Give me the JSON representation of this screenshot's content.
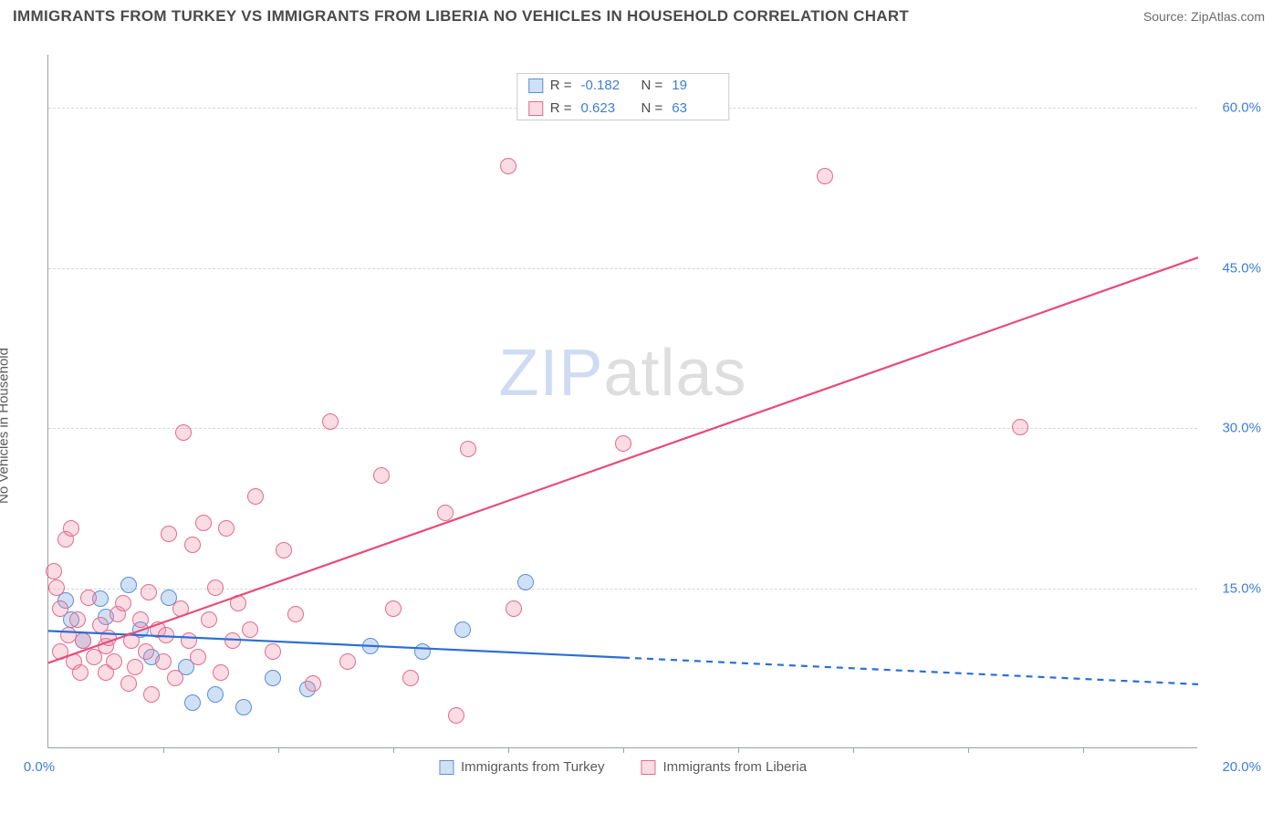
{
  "title": "IMMIGRANTS FROM TURKEY VS IMMIGRANTS FROM LIBERIA NO VEHICLES IN HOUSEHOLD CORRELATION CHART",
  "source": "Source: ZipAtlas.com",
  "ylabel": "No Vehicles in Household",
  "watermark_zip": "ZIP",
  "watermark_atlas": "atlas",
  "chart": {
    "type": "scatter",
    "xlim": [
      0,
      20
    ],
    "ylim": [
      0,
      65
    ],
    "xtick_labels": [
      "0.0%",
      "20.0%"
    ],
    "xtick_positions": [
      0,
      20
    ],
    "xtick_minor": [
      2,
      4,
      6,
      8,
      10,
      12,
      14,
      16,
      18
    ],
    "ytick_labels": [
      "15.0%",
      "30.0%",
      "45.0%",
      "60.0%"
    ],
    "ytick_positions": [
      15,
      30,
      45,
      60
    ],
    "background_color": "#ffffff",
    "grid_color": "#d5d7da",
    "axis_color": "#9aa0a6",
    "label_color": "#3d7fd9",
    "point_radius": 9,
    "point_border": 1.5,
    "series": [
      {
        "name": "Immigrants from Turkey",
        "fill": "rgba(120,170,230,0.35)",
        "stroke": "#5b8fd6",
        "line_color": "#2a6fd6",
        "line_width": 2.2,
        "R": "-0.182",
        "N": "19",
        "trend": {
          "x1": 0,
          "y1": 11.0,
          "x2_solid": 10,
          "y2_solid": 8.5,
          "x2": 20,
          "y2": 6.0
        },
        "points": [
          [
            0.3,
            13.8
          ],
          [
            0.4,
            12.0
          ],
          [
            0.6,
            10.0
          ],
          [
            0.9,
            13.9
          ],
          [
            1.0,
            12.2
          ],
          [
            1.4,
            15.2
          ],
          [
            1.6,
            11.0
          ],
          [
            1.8,
            8.5
          ],
          [
            2.1,
            14.0
          ],
          [
            2.4,
            7.5
          ],
          [
            2.5,
            4.2
          ],
          [
            2.9,
            5.0
          ],
          [
            3.4,
            3.8
          ],
          [
            3.9,
            6.5
          ],
          [
            4.5,
            5.5
          ],
          [
            5.6,
            9.5
          ],
          [
            6.5,
            9.0
          ],
          [
            7.2,
            11.0
          ],
          [
            8.3,
            15.5
          ]
        ]
      },
      {
        "name": "Immigrants from Liberia",
        "fill": "rgba(240,140,165,0.30)",
        "stroke": "#e26c8e",
        "line_color": "#e84b7b",
        "line_width": 2.2,
        "R": "0.623",
        "N": "63",
        "trend": {
          "x1": 0,
          "y1": 8.0,
          "x2_solid": 20,
          "y2_solid": 46.0,
          "x2": 20,
          "y2": 46.0
        },
        "points": [
          [
            0.1,
            16.5
          ],
          [
            0.15,
            15.0
          ],
          [
            0.2,
            13.0
          ],
          [
            0.2,
            9.0
          ],
          [
            0.3,
            19.5
          ],
          [
            0.35,
            10.5
          ],
          [
            0.4,
            20.5
          ],
          [
            0.45,
            8.0
          ],
          [
            0.5,
            12.0
          ],
          [
            0.55,
            7.0
          ],
          [
            0.6,
            10.0
          ],
          [
            0.7,
            14.0
          ],
          [
            0.8,
            8.5
          ],
          [
            0.9,
            11.5
          ],
          [
            1.0,
            9.5
          ],
          [
            1.0,
            7.0
          ],
          [
            1.05,
            10.3
          ],
          [
            1.15,
            8.0
          ],
          [
            1.2,
            12.5
          ],
          [
            1.3,
            13.5
          ],
          [
            1.4,
            6.0
          ],
          [
            1.45,
            10.0
          ],
          [
            1.5,
            7.5
          ],
          [
            1.6,
            12.0
          ],
          [
            1.7,
            9.0
          ],
          [
            1.75,
            14.5
          ],
          [
            1.8,
            5.0
          ],
          [
            1.9,
            11.0
          ],
          [
            2.0,
            8.0
          ],
          [
            2.05,
            10.5
          ],
          [
            2.1,
            20.0
          ],
          [
            2.2,
            6.5
          ],
          [
            2.3,
            13.0
          ],
          [
            2.35,
            29.5
          ],
          [
            2.45,
            10.0
          ],
          [
            2.5,
            19.0
          ],
          [
            2.6,
            8.5
          ],
          [
            2.7,
            21.0
          ],
          [
            2.8,
            12.0
          ],
          [
            2.9,
            15.0
          ],
          [
            3.0,
            7.0
          ],
          [
            3.1,
            20.5
          ],
          [
            3.2,
            10.0
          ],
          [
            3.3,
            13.5
          ],
          [
            3.5,
            11.0
          ],
          [
            3.6,
            23.5
          ],
          [
            3.9,
            9.0
          ],
          [
            4.1,
            18.5
          ],
          [
            4.3,
            12.5
          ],
          [
            4.6,
            6.0
          ],
          [
            4.9,
            30.5
          ],
          [
            5.2,
            8.0
          ],
          [
            5.8,
            25.5
          ],
          [
            6.0,
            13.0
          ],
          [
            6.3,
            6.5
          ],
          [
            6.9,
            22.0
          ],
          [
            7.3,
            28.0
          ],
          [
            7.1,
            3.0
          ],
          [
            8.0,
            54.5
          ],
          [
            8.1,
            13.0
          ],
          [
            10.0,
            28.5
          ],
          [
            13.5,
            53.5
          ],
          [
            16.9,
            30.0
          ]
        ]
      }
    ]
  },
  "legend_top": [
    {
      "series": 0,
      "R_label": "R =",
      "N_label": "N ="
    },
    {
      "series": 1,
      "R_label": "R =",
      "N_label": "N ="
    }
  ]
}
